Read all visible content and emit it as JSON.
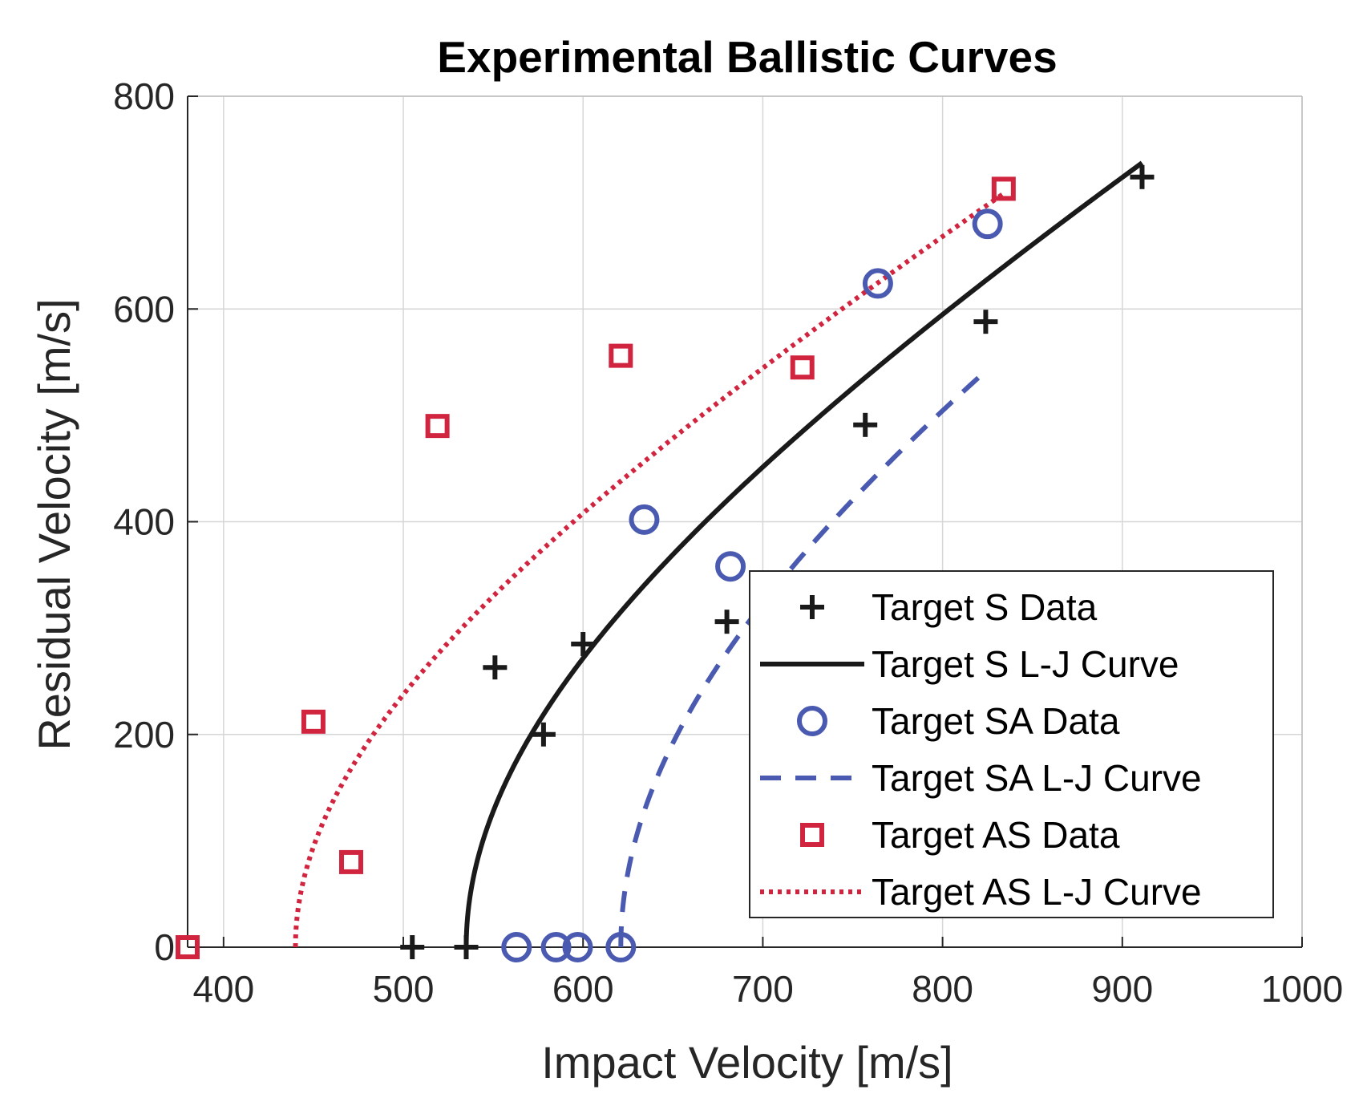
{
  "chart_data": {
    "type": "line",
    "title": "Experimental Ballistic Curves",
    "xlabel": "Impact Velocity [m/s]",
    "ylabel": "Residual Velocity [m/s]",
    "xlim": [
      380,
      1000
    ],
    "ylim": [
      0,
      800
    ],
    "xticks": [
      400,
      500,
      600,
      700,
      800,
      900,
      1000
    ],
    "yticks": [
      0,
      200,
      400,
      600,
      800
    ],
    "grid": true,
    "legend_position": "bottom-right",
    "series": [
      {
        "name": "Target S Data",
        "kind": "scatter",
        "marker": "plus",
        "color": "#1a1a1a",
        "x": [
          505,
          535,
          551,
          578,
          600,
          680,
          757,
          824,
          911
        ],
        "y": [
          0,
          0,
          263,
          200,
          285,
          306,
          491,
          588,
          724
        ]
      },
      {
        "name": "Target S L-J Curve",
        "kind": "line",
        "style": "solid",
        "color": "#1a1a1a",
        "fit": {
          "v_bl": 535,
          "a": 1.0,
          "p": 2.0
        },
        "x_range": [
          535,
          911
        ]
      },
      {
        "name": "Target SA Data",
        "kind": "scatter",
        "marker": "circle",
        "color": "#4a5ab0",
        "x": [
          563,
          585,
          597,
          621,
          634,
          682,
          764,
          825
        ],
        "y": [
          0,
          0,
          0,
          0,
          402,
          358,
          624,
          680
        ]
      },
      {
        "name": "Target SA L-J Curve",
        "kind": "line",
        "style": "dashed",
        "color": "#4a5ab0",
        "fit": {
          "v_bl": 621,
          "a": 1.0,
          "p": 2.0
        },
        "x_range": [
          621,
          825
        ]
      },
      {
        "name": "Target AS Data",
        "kind": "scatter",
        "marker": "square",
        "color": "#d0243f",
        "x": [
          380,
          450,
          471,
          519,
          621,
          722,
          834
        ],
        "y": [
          0,
          212,
          80,
          490,
          556,
          545,
          713
        ]
      },
      {
        "name": "Target AS L-J Curve",
        "kind": "line",
        "style": "dotted",
        "color": "#d0243f",
        "fit": {
          "v_bl": 440,
          "a": 1.0,
          "p": 2.0
        },
        "x_range": [
          440,
          834
        ]
      }
    ]
  }
}
